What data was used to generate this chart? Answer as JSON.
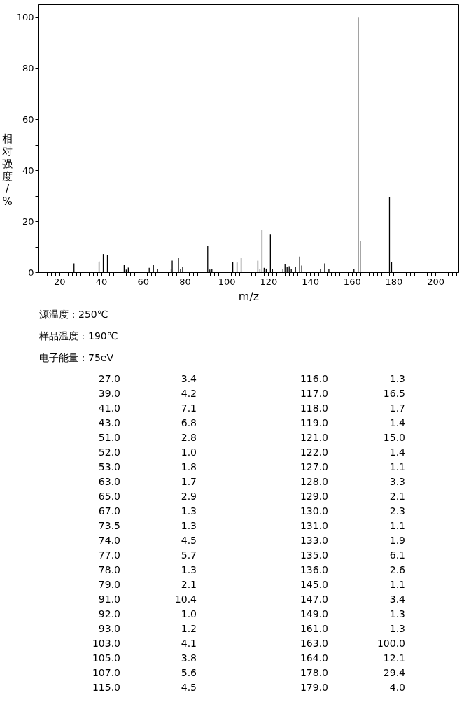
{
  "chart_data": [
    {
      "type": "bar",
      "xlabel": "m/z",
      "ylabel": "相对强度/%",
      "x": [
        27.0,
        39.0,
        41.0,
        43.0,
        51.0,
        52.0,
        53.0,
        63.0,
        65.0,
        67.0,
        73.5,
        74.0,
        77.0,
        78.0,
        79.0,
        91.0,
        92.0,
        93.0,
        103.0,
        105.0,
        107.0,
        115.0,
        116.0,
        117.0,
        118.0,
        119.0,
        121.0,
        122.0,
        127.0,
        128.0,
        129.0,
        130.0,
        131.0,
        133.0,
        135.0,
        136.0,
        145.0,
        147.0,
        149.0,
        161.0,
        163.0,
        164.0,
        178.0,
        179.0
      ],
      "values": [
        3.4,
        4.2,
        7.1,
        6.8,
        2.8,
        1.0,
        1.8,
        1.7,
        2.9,
        1.3,
        1.3,
        4.5,
        5.7,
        1.3,
        2.1,
        10.4,
        1.0,
        1.2,
        4.1,
        3.8,
        5.6,
        4.5,
        1.3,
        16.5,
        1.7,
        1.4,
        15.0,
        1.4,
        1.1,
        3.3,
        2.1,
        2.3,
        1.1,
        1.9,
        6.1,
        2.6,
        1.1,
        3.4,
        1.3,
        1.3,
        100.0,
        12.1,
        29.4,
        4.0
      ],
      "color": "#000000",
      "xlim": [
        10,
        211
      ],
      "ylim": [
        0,
        105
      ],
      "xticks": [
        {
          "value": 12,
          "label": null
        },
        {
          "value": 14,
          "label": null
        },
        {
          "value": 16,
          "label": null
        },
        {
          "value": 18,
          "label": null
        },
        20,
        {
          "value": 22,
          "label": null
        },
        {
          "value": 24,
          "label": null
        },
        {
          "value": 26,
          "label": null
        },
        {
          "value": 28,
          "label": null
        },
        {
          "value": 30,
          "label": null
        },
        {
          "value": 32,
          "label": null
        },
        {
          "value": 34,
          "label": null
        },
        {
          "value": 36,
          "label": null
        },
        {
          "value": 38,
          "label": null
        },
        40,
        {
          "value": 42,
          "label": null
        },
        {
          "value": 44,
          "label": null
        },
        {
          "value": 46,
          "label": null
        },
        {
          "value": 48,
          "label": null
        },
        {
          "value": 50,
          "label": null
        },
        {
          "value": 52,
          "label": null
        },
        {
          "value": 54,
          "label": null
        },
        {
          "value": 56,
          "label": null
        },
        {
          "value": 58,
          "label": null
        },
        60,
        {
          "value": 62,
          "label": null
        },
        {
          "value": 64,
          "label": null
        },
        {
          "value": 66,
          "label": null
        },
        {
          "value": 68,
          "label": null
        },
        {
          "value": 70,
          "label": null
        },
        {
          "value": 72,
          "label": null
        },
        {
          "value": 74,
          "label": null
        },
        {
          "value": 76,
          "label": null
        },
        {
          "value": 78,
          "label": null
        },
        80,
        {
          "value": 82,
          "label": null
        },
        {
          "value": 84,
          "label": null
        },
        {
          "value": 86,
          "label": null
        },
        {
          "value": 88,
          "label": null
        },
        {
          "value": 90,
          "label": null
        },
        {
          "value": 92,
          "label": null
        },
        {
          "value": 94,
          "label": null
        },
        {
          "value": 96,
          "label": null
        },
        {
          "value": 98,
          "label": null
        },
        100,
        {
          "value": 102,
          "label": null
        },
        {
          "value": 104,
          "label": null
        },
        {
          "value": 106,
          "label": null
        },
        {
          "value": 108,
          "label": null
        },
        {
          "value": 110,
          "label": null
        },
        {
          "value": 112,
          "label": null
        },
        {
          "value": 114,
          "label": null
        },
        {
          "value": 116,
          "label": null
        },
        {
          "value": 118,
          "label": null
        },
        120,
        {
          "value": 122,
          "label": null
        },
        {
          "value": 124,
          "label": null
        },
        {
          "value": 126,
          "label": null
        },
        {
          "value": 128,
          "label": null
        },
        {
          "value": 130,
          "label": null
        },
        {
          "value": 132,
          "label": null
        },
        {
          "value": 134,
          "label": null
        },
        {
          "value": 136,
          "label": null
        },
        {
          "value": 138,
          "label": null
        },
        140,
        {
          "value": 142,
          "label": null
        },
        {
          "value": 144,
          "label": null
        },
        {
          "value": 146,
          "label": null
        },
        {
          "value": 148,
          "label": null
        },
        {
          "value": 150,
          "label": null
        },
        {
          "value": 152,
          "label": null
        },
        {
          "value": 154,
          "label": null
        },
        {
          "value": 156,
          "label": null
        },
        {
          "value": 158,
          "label": null
        },
        160,
        {
          "value": 162,
          "label": null
        },
        {
          "value": 164,
          "label": null
        },
        {
          "value": 166,
          "label": null
        },
        {
          "value": 168,
          "label": null
        },
        {
          "value": 170,
          "label": null
        },
        {
          "value": 172,
          "label": null
        },
        {
          "value": 174,
          "label": null
        },
        {
          "value": 176,
          "label": null
        },
        {
          "value": 178,
          "label": null
        },
        180,
        {
          "value": 182,
          "label": null
        },
        {
          "value": 184,
          "label": null
        },
        {
          "value": 186,
          "label": null
        },
        {
          "value": 188,
          "label": null
        },
        {
          "value": 190,
          "label": null
        },
        {
          "value": 192,
          "label": null
        },
        {
          "value": 194,
          "label": null
        },
        {
          "value": 196,
          "label": null
        },
        {
          "value": 198,
          "label": null
        },
        200,
        {
          "value": 202,
          "label": null
        },
        {
          "value": 204,
          "label": null
        },
        {
          "value": 206,
          "label": null
        },
        {
          "value": 208,
          "label": null
        },
        {
          "value": 210,
          "label": null
        }
      ],
      "yticks": [
        0,
        {
          "value": 10,
          "label": null
        },
        20,
        {
          "value": 30,
          "label": null
        },
        40,
        {
          "value": 50,
          "label": null
        },
        60,
        {
          "value": 70,
          "label": null
        },
        80,
        {
          "value": 90,
          "label": null
        },
        100
      ]
    },
    {
      "type": "other",
      "annotations": [
        "源温度：250℃",
        "样品温度：190℃",
        "电子能量：75eV"
      ],
      "categories": [
        "27.0",
        "39.0",
        "41.0",
        "43.0",
        "51.0",
        "52.0",
        "53.0",
        "63.0",
        "65.0",
        "67.0",
        "73.5",
        "74.0",
        "77.0",
        "78.0",
        "79.0",
        "91.0",
        "92.0",
        "93.0",
        "103.0",
        "105.0",
        "107.0",
        "115.0",
        "116.0",
        "117.0",
        "118.0",
        "119.0",
        "121.0",
        "122.0",
        "127.0",
        "128.0",
        "129.0",
        "130.0",
        "131.0",
        "133.0",
        "135.0",
        "136.0",
        "145.0",
        "147.0",
        "149.0",
        "161.0",
        "163.0",
        "164.0",
        "178.0",
        "179.0"
      ],
      "value_labels": [
        "3.4",
        "4.2",
        "7.1",
        "6.8",
        "2.8",
        "1.0",
        "1.8",
        "1.7",
        "2.9",
        "1.3",
        "1.3",
        "4.5",
        "5.7",
        "1.3",
        "2.1",
        "10.4",
        "1.0",
        "1.2",
        "4.1",
        "3.8",
        "5.6",
        "4.5",
        "1.3",
        "16.5",
        "1.7",
        "1.4",
        "15.0",
        "1.4",
        "1.1",
        "3.3",
        "2.1",
        "2.3",
        "1.1",
        "1.9",
        "6.1",
        "2.6",
        "1.1",
        "3.4",
        "1.3",
        "1.3",
        "100.0",
        "12.1",
        "29.4",
        "4.0"
      ]
    }
  ]
}
